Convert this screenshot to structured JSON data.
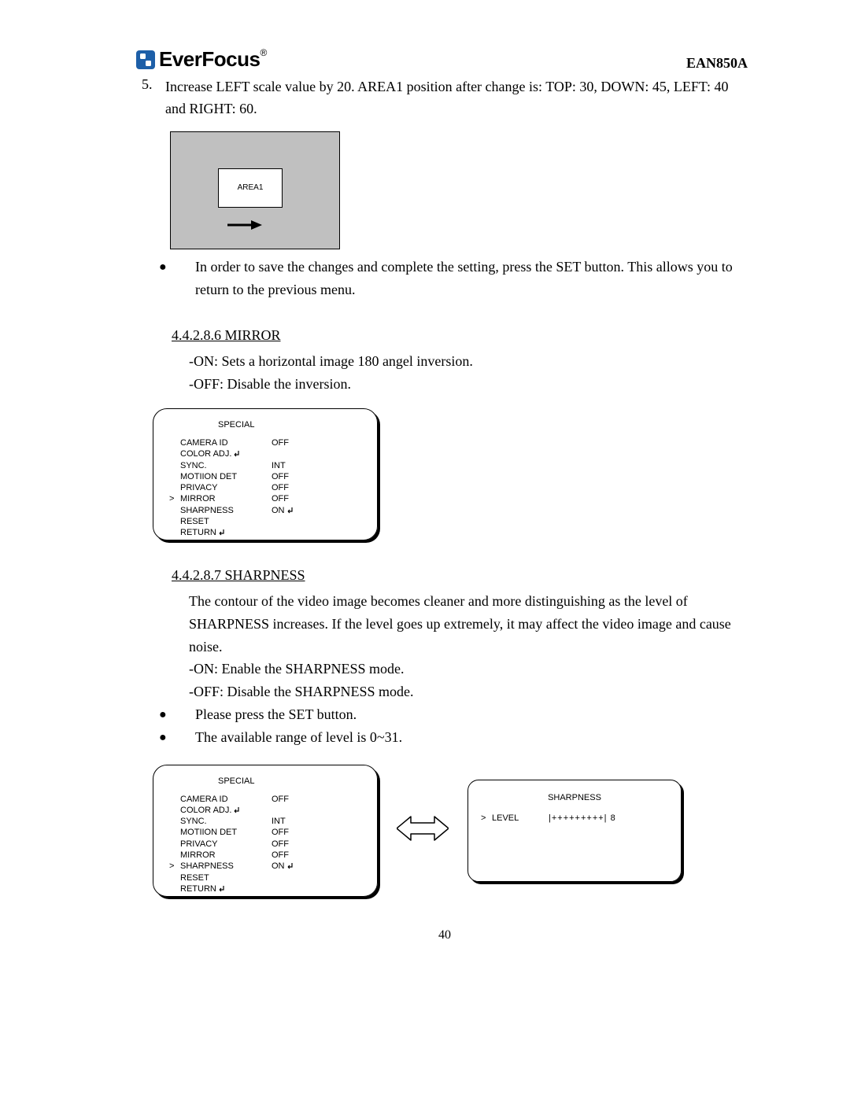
{
  "header": {
    "brand": "EverFocus",
    "model": "EAN850A",
    "logo_colors": {
      "blue": "#1d5fa8",
      "white": "#ffffff"
    }
  },
  "step5": {
    "number": "5.",
    "text": "Increase LEFT scale value by 20. AREA1 position after change is: TOP: 30, DOWN: 45, LEFT: 40 and RIGHT: 60."
  },
  "area_figure": {
    "label": "AREA1",
    "bg_color": "#c0c0c0",
    "arrow_color": "#000000"
  },
  "save_bullet": "In order to save the changes and complete the setting, press the SET button. This allows you to return to the previous menu.",
  "mirror": {
    "heading": "4.4.2.8.6 MIRROR",
    "on": "-ON: Sets a horizontal image 180 angel inversion.",
    "off": "-OFF: Disable the inversion."
  },
  "sharpness": {
    "heading": "4.4.2.8.7 SHARPNESS",
    "desc": "The contour of the video image becomes cleaner and more distinguishing as the level of SHARPNESS increases. If the level goes up extremely, it may affect the video image and cause noise.",
    "on": "-ON: Enable the SHARPNESS mode.",
    "off": "-OFF: Disable the SHARPNESS mode.",
    "bullet1": "Please press the SET button.",
    "bullet2": "The available range of level is 0~31."
  },
  "osd1": {
    "title": "SPECIAL",
    "rows": [
      {
        "cursor": "",
        "label": "CAMERA ID",
        "value": "OFF",
        "enter": false
      },
      {
        "cursor": "",
        "label": "COLOR ADJ.",
        "value": "",
        "enter": true
      },
      {
        "cursor": "",
        "label": "SYNC.",
        "value": "INT",
        "enter": false
      },
      {
        "cursor": "",
        "label": "MOTIION DET",
        "value": "OFF",
        "enter": false
      },
      {
        "cursor": "",
        "label": "PRIVACY",
        "value": "OFF",
        "enter": false
      },
      {
        "cursor": ">",
        "label": "MIRROR",
        "value": "OFF",
        "enter": false
      },
      {
        "cursor": "",
        "label": "SHARPNESS",
        "value": "ON",
        "enter": true
      },
      {
        "cursor": "",
        "label": "RESET",
        "value": "",
        "enter": false
      },
      {
        "cursor": "",
        "label": "RETURN",
        "value": "",
        "enter": true
      }
    ]
  },
  "osd2": {
    "title": "SPECIAL",
    "rows": [
      {
        "cursor": "",
        "label": "CAMERA ID",
        "value": "OFF",
        "enter": false
      },
      {
        "cursor": "",
        "label": "COLOR ADJ.",
        "value": "",
        "enter": true
      },
      {
        "cursor": "",
        "label": "SYNC.",
        "value": "INT",
        "enter": false
      },
      {
        "cursor": "",
        "label": "MOTIION DET",
        "value": "OFF",
        "enter": false
      },
      {
        "cursor": "",
        "label": "PRIVACY",
        "value": "OFF",
        "enter": false
      },
      {
        "cursor": "",
        "label": "MIRROR",
        "value": "OFF",
        "enter": false
      },
      {
        "cursor": ">",
        "label": "SHARPNESS",
        "value": "ON",
        "enter": true
      },
      {
        "cursor": "",
        "label": "RESET",
        "value": "",
        "enter": false
      },
      {
        "cursor": "",
        "label": "RETURN",
        "value": "",
        "enter": true
      }
    ]
  },
  "sharp_panel": {
    "title": "SHARPNESS",
    "cursor": ">",
    "label": "LEVEL",
    "bar": "|+++++++++|",
    "value": "8"
  },
  "page_number": "40"
}
